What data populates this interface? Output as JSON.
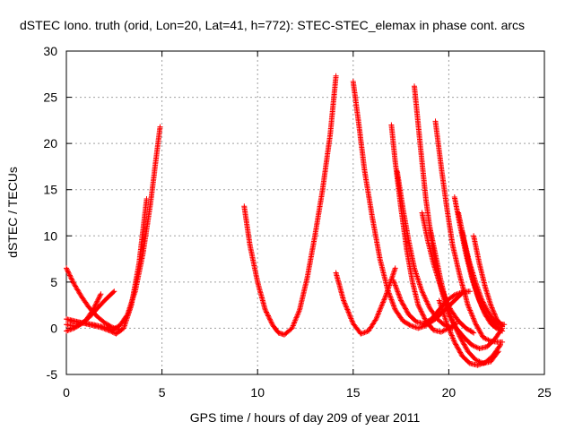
{
  "chart_data": {
    "type": "scatter",
    "title": "dSTEC Iono. truth (orid, Lon=20, Lat=41, h=772): STEC-STEC_elemax in phase cont. arcs",
    "xlabel": "GPS time / hours of day 209 of year 2011",
    "ylabel": "dSTEC  / TECUs",
    "xlim": [
      0,
      25
    ],
    "ylim": [
      -5,
      30
    ],
    "x_ticks": [
      0,
      5,
      10,
      15,
      20,
      25
    ],
    "y_ticks": [
      -5,
      0,
      5,
      10,
      15,
      20,
      25,
      30
    ],
    "grid": true,
    "marker": "+",
    "color": "#ff0000",
    "series": [
      {
        "x": [
          0.0,
          0.4,
          0.8,
          1.2,
          1.6,
          2.0,
          2.4,
          2.8
        ],
        "y": [
          6.5,
          4.8,
          3.4,
          2.2,
          1.3,
          0.6,
          0.1,
          -0.2
        ]
      },
      {
        "x": [
          0.0,
          0.4,
          0.8,
          1.2,
          1.6,
          2.0,
          2.5
        ],
        "y": [
          -0.3,
          0.0,
          0.5,
          1.2,
          2.1,
          3.0,
          4.0
        ]
      },
      {
        "x": [
          0.0,
          0.5,
          1.0,
          1.4,
          1.8
        ],
        "y": [
          0.4,
          0.2,
          0.8,
          2.0,
          3.7
        ]
      },
      {
        "x": [
          0.0,
          0.6,
          1.2,
          1.8,
          2.3,
          2.6,
          3.0,
          3.4,
          3.8,
          4.2
        ],
        "y": [
          1.0,
          0.7,
          0.4,
          0.1,
          -0.3,
          -0.6,
          0.0,
          2.5,
          7.0,
          14.0
        ]
      },
      {
        "x": [
          0.2,
          0.8,
          1.4,
          2.0,
          2.4,
          2.8,
          3.2,
          3.6,
          4.0,
          4.4,
          4.9
        ],
        "y": [
          0.8,
          0.6,
          0.4,
          0.1,
          -0.2,
          0.3,
          1.5,
          4.0,
          8.0,
          13.5,
          21.8
        ]
      },
      {
        "x": [
          9.3,
          9.6,
          10.0,
          10.4,
          10.8,
          11.1,
          11.4,
          11.8,
          12.2,
          12.6,
          13.0,
          13.4,
          13.8,
          14.1
        ],
        "y": [
          13.2,
          9.0,
          5.0,
          2.0,
          0.3,
          -0.5,
          -0.7,
          0.0,
          2.0,
          5.5,
          10.0,
          15.0,
          21.0,
          27.3
        ]
      },
      {
        "x": [
          14.1,
          14.5,
          15.0,
          15.4,
          15.8,
          16.2,
          16.7,
          17.2
        ],
        "y": [
          6.0,
          3.0,
          0.5,
          -0.6,
          -0.3,
          1.0,
          3.5,
          6.5
        ]
      },
      {
        "x": [
          15.0,
          15.3,
          15.6,
          16.0,
          16.4,
          16.8,
          17.2,
          17.6,
          18.0,
          18.4,
          18.8,
          19.3,
          19.8,
          20.3,
          20.8
        ],
        "y": [
          26.7,
          22.0,
          17.0,
          12.0,
          7.5,
          4.2,
          2.0,
          0.8,
          0.3,
          0.0,
          0.3,
          1.0,
          2.0,
          3.0,
          4.0
        ]
      },
      {
        "x": [
          17.0,
          17.2,
          17.5,
          17.8,
          18.1,
          18.4,
          18.8,
          19.2,
          19.6,
          20.0,
          20.4
        ],
        "y": [
          22.0,
          18.0,
          13.0,
          8.5,
          5.0,
          2.5,
          0.8,
          -0.2,
          -0.4,
          0.0,
          0.5
        ]
      },
      {
        "x": [
          17.1,
          17.5,
          17.9,
          18.3,
          18.7,
          19.1,
          19.5,
          19.9,
          20.3,
          20.7,
          21.1
        ],
        "y": [
          5.2,
          3.0,
          1.5,
          0.7,
          0.5,
          1.0,
          2.0,
          3.0,
          3.6,
          3.9,
          4.0
        ]
      },
      {
        "x": [
          17.3,
          17.6,
          17.9,
          18.2,
          18.6,
          19.0,
          19.4,
          19.8,
          20.2
        ],
        "y": [
          17.0,
          13.0,
          9.5,
          6.5,
          4.0,
          2.2,
          1.0,
          0.3,
          0.0
        ]
      },
      {
        "x": [
          18.2,
          18.5,
          18.8,
          19.1,
          19.4,
          19.7,
          20.0,
          20.4,
          20.8,
          21.2,
          21.6,
          22.0,
          22.4,
          22.8
        ],
        "y": [
          26.2,
          20.0,
          14.0,
          9.5,
          6.0,
          3.5,
          1.5,
          0.0,
          -1.0,
          -1.8,
          -2.2,
          -2.0,
          -1.2,
          0.0
        ]
      },
      {
        "x": [
          18.6,
          18.9,
          19.2,
          19.5,
          19.8,
          20.1,
          20.5,
          20.9,
          21.3
        ],
        "y": [
          12.5,
          9.5,
          7.0,
          5.0,
          3.3,
          2.0,
          0.8,
          0.0,
          -0.5
        ]
      },
      {
        "x": [
          19.0,
          19.3,
          19.6,
          19.9,
          20.2,
          20.6,
          21.0,
          21.4,
          21.8,
          22.2,
          22.6
        ],
        "y": [
          11.0,
          8.0,
          5.0,
          2.5,
          0.7,
          -1.0,
          -2.5,
          -3.4,
          -3.8,
          -3.6,
          -2.5
        ]
      },
      {
        "x": [
          19.3,
          19.6,
          19.9,
          20.2,
          20.6,
          21.0,
          21.4,
          21.8,
          22.2,
          22.6,
          22.8
        ],
        "y": [
          22.4,
          17.5,
          13.0,
          9.0,
          5.5,
          2.5,
          0.5,
          -1.0,
          -1.4,
          -1.5,
          -1.5
        ]
      },
      {
        "x": [
          19.5,
          19.9,
          20.3,
          20.7,
          21.1,
          21.5,
          21.9,
          22.3,
          22.7
        ],
        "y": [
          3.0,
          0.5,
          -1.5,
          -3.0,
          -3.8,
          -4.0,
          -3.7,
          -3.0,
          -1.8
        ]
      },
      {
        "x": [
          20.3,
          20.6,
          20.9,
          21.2,
          21.5,
          21.8,
          22.1,
          22.4,
          22.7
        ],
        "y": [
          14.2,
          11.0,
          8.0,
          5.5,
          3.5,
          2.0,
          1.0,
          0.3,
          0.0
        ]
      },
      {
        "x": [
          20.5,
          20.8,
          21.1,
          21.4,
          21.7,
          22.0,
          22.3,
          22.6,
          22.9
        ],
        "y": [
          12.5,
          9.5,
          7.0,
          5.0,
          3.2,
          2.0,
          1.0,
          0.5,
          0.4
        ]
      },
      {
        "x": [
          20.7,
          21.0,
          21.3,
          21.6,
          21.9,
          22.2,
          22.5,
          22.8
        ],
        "y": [
          10.5,
          7.5,
          5.0,
          3.0,
          1.5,
          0.5,
          0.0,
          -0.3
        ]
      },
      {
        "x": [
          21.3,
          21.6,
          21.9,
          22.2,
          22.5,
          22.8
        ],
        "y": [
          10.0,
          7.0,
          4.5,
          2.5,
          1.0,
          0.2
        ]
      }
    ]
  }
}
